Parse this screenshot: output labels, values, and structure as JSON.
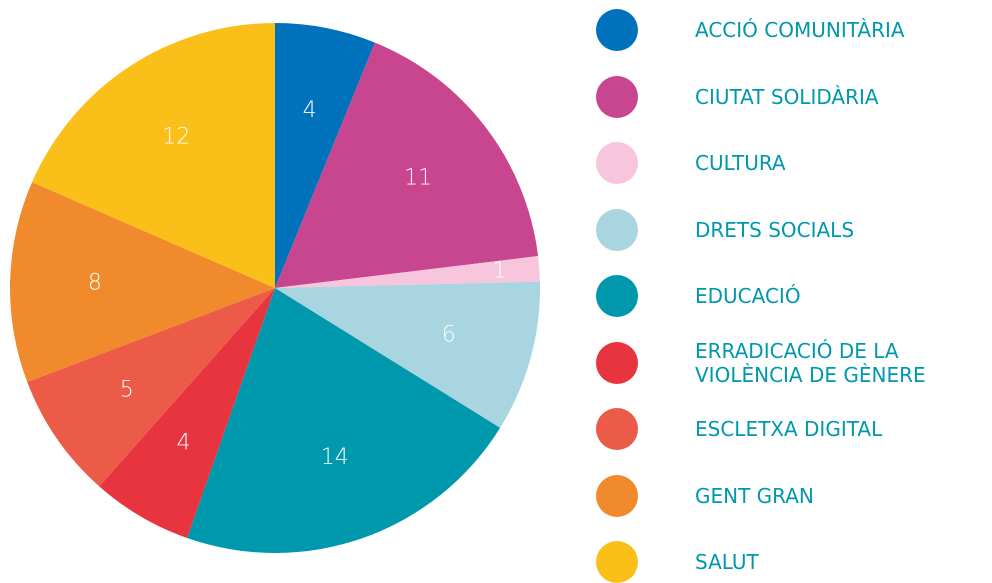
{
  "chart_data": {
    "type": "pie",
    "categories": [
      "ACCIÓ COMUNITÀRIA",
      "CIUTAT SOLIDÀRIA",
      "CULTURA",
      "DRETS SOCIALS",
      "EDUCACIÓ",
      "ERRADICACIÓ DE LA VIOLÈNCIA DE GÈNERE",
      "ESCLETXA DIGITAL",
      "GENT GRAN",
      "SALUT"
    ],
    "values": [
      4,
      11,
      1,
      6,
      14,
      4,
      5,
      8,
      12
    ],
    "colors": [
      "#0072bc",
      "#c8468f",
      "#f7c6dd",
      "#a8d5df",
      "#0098ad",
      "#e7343f",
      "#ec5b47",
      "#f08a2c",
      "#fbbf1a"
    ],
    "legend": "right"
  }
}
